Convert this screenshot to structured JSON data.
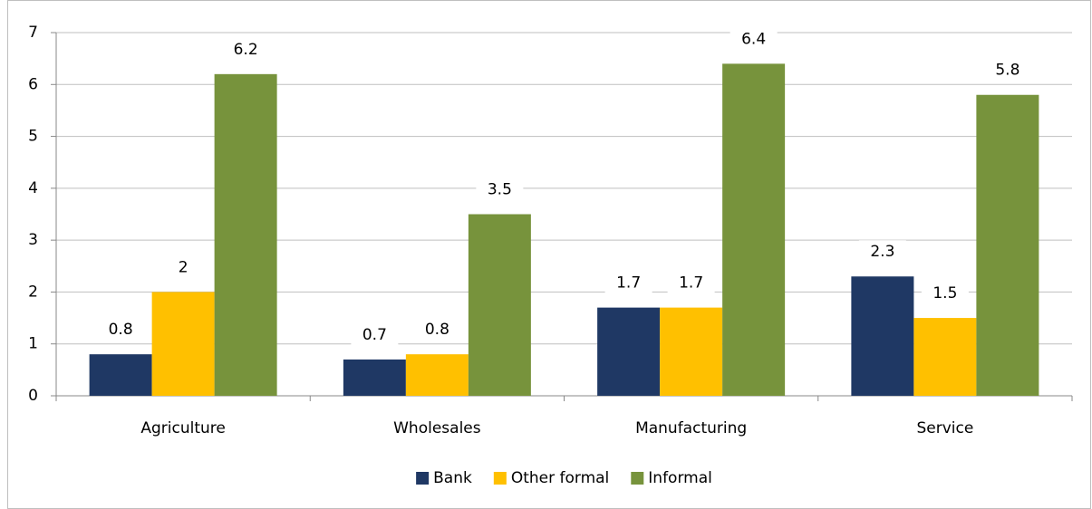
{
  "chart_data": {
    "type": "bar",
    "categories": [
      "Agriculture",
      "Wholesales",
      "Manufacturing",
      "Service"
    ],
    "series": [
      {
        "name": "Bank",
        "color": "#1f3864",
        "values": [
          0.8,
          0.7,
          1.7,
          2.3
        ]
      },
      {
        "name": "Other formal",
        "color": "#ffc000",
        "values": [
          2,
          0.8,
          1.7,
          1.5
        ]
      },
      {
        "name": "Informal",
        "color": "#77933c",
        "values": [
          6.2,
          3.5,
          6.4,
          5.8
        ]
      }
    ],
    "ylim": [
      0,
      7
    ],
    "yticks": [
      0,
      1,
      2,
      3,
      4,
      5,
      6,
      7
    ],
    "grid": true,
    "legend": "bottom"
  }
}
